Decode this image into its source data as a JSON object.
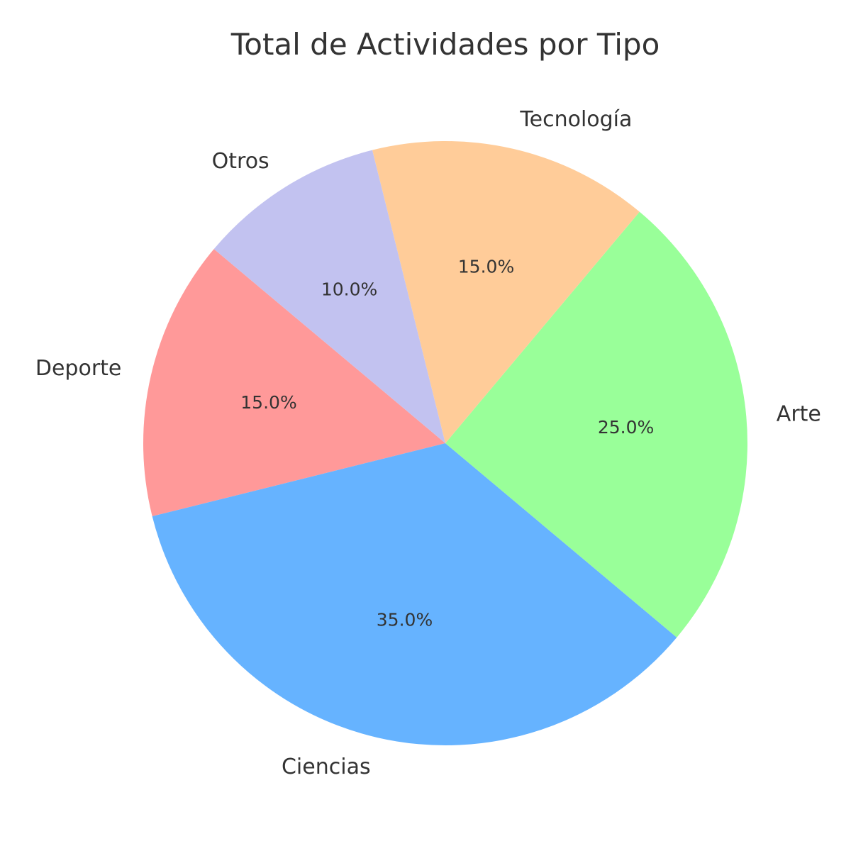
{
  "chart_data": {
    "type": "pie",
    "title": "Total de Actividades por Tipo",
    "categories": [
      "Deporte",
      "Ciencias",
      "Arte",
      "Tecnología",
      "Otros"
    ],
    "values": [
      15,
      35,
      25,
      15,
      10
    ],
    "percent_labels": [
      "15.0%",
      "35.0%",
      "25.0%",
      "15.0%",
      "10.0%"
    ],
    "colors": [
      "#ff9999",
      "#66b3ff",
      "#99ff99",
      "#ffcc99",
      "#c2c2f0"
    ],
    "start_angle_deg": 140,
    "direction": "counterclockwise",
    "legend": "none"
  }
}
